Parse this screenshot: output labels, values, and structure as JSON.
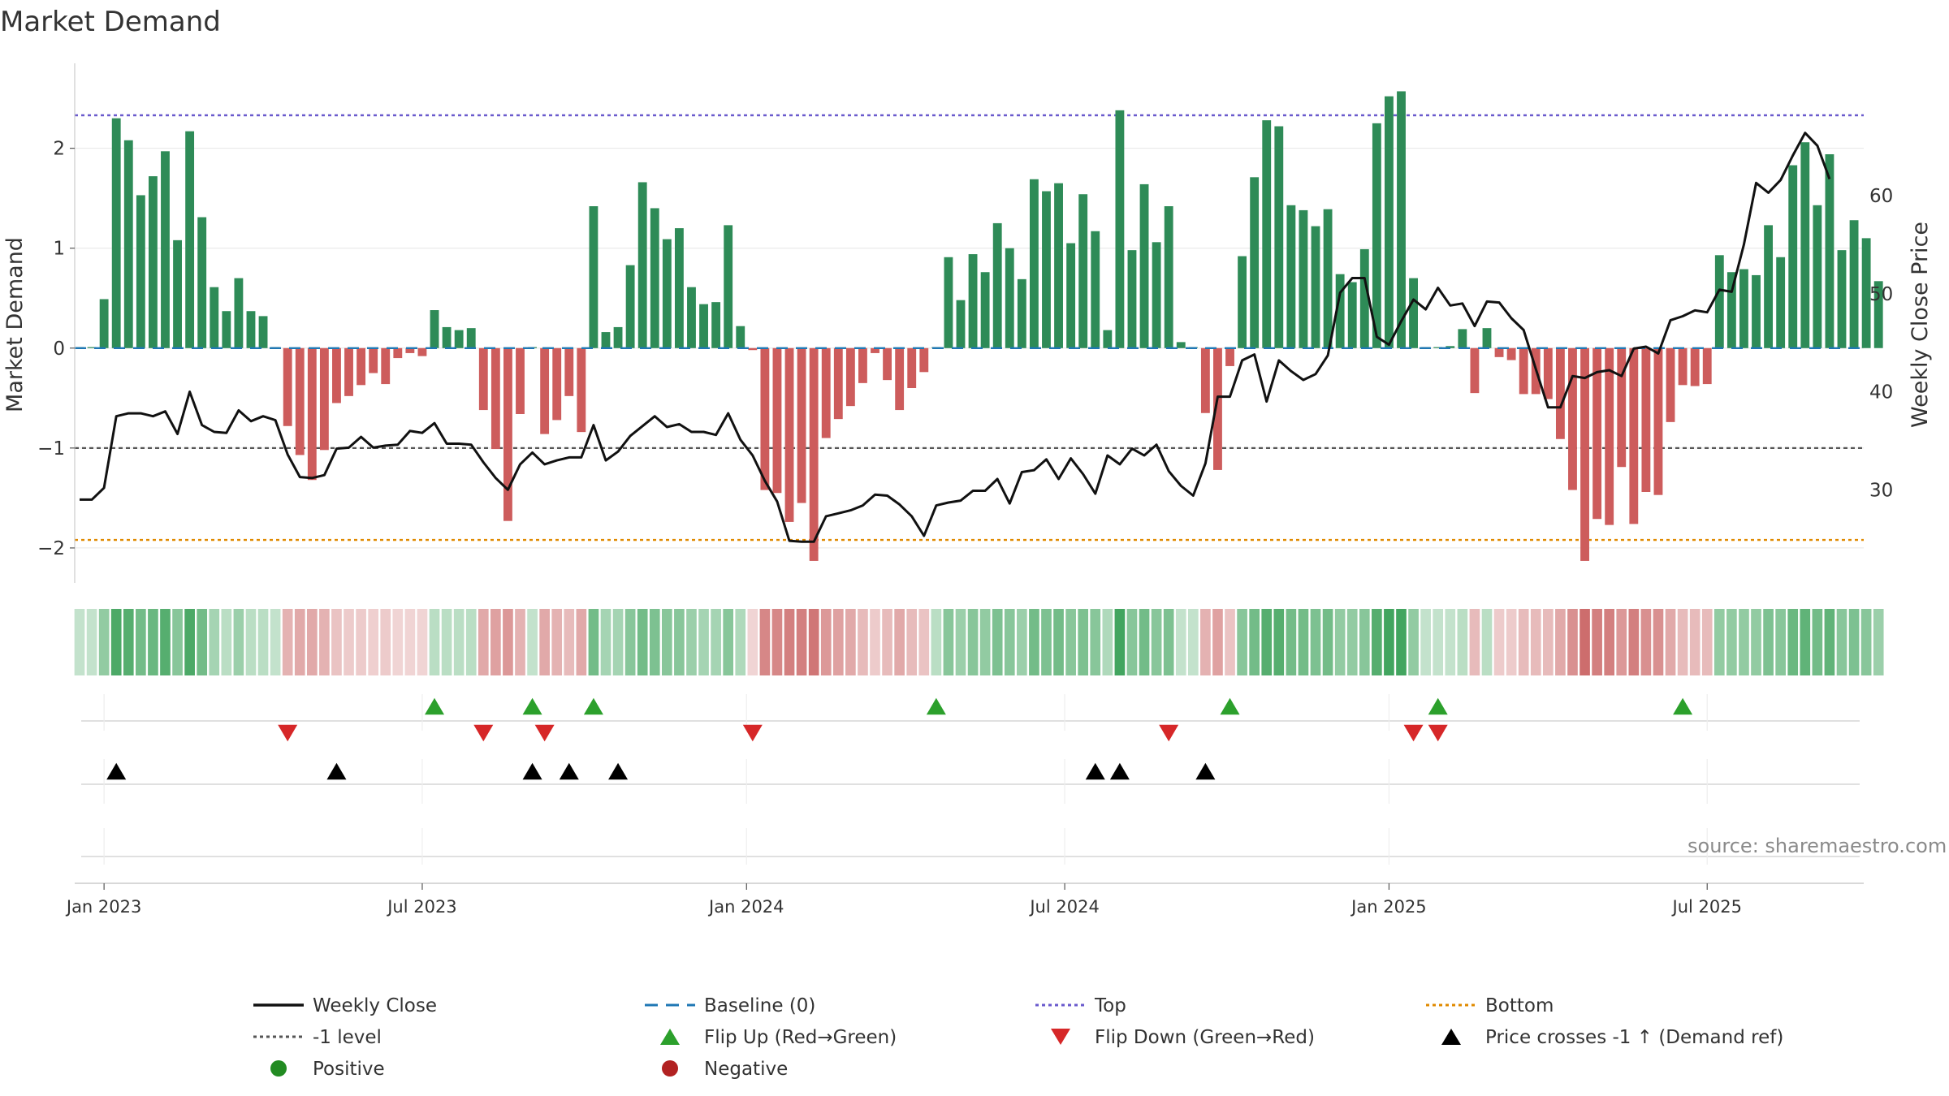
{
  "chart_data": {
    "type": "bar",
    "title": "Market Demand",
    "ylabel_left": "Market Demand",
    "ylabel_right": "Weekly Close Price",
    "ylim_left": [
      -2.35,
      2.85
    ],
    "ylim_right": [
      20.5,
      73.5
    ],
    "left_ticks": [
      -2,
      -1,
      0,
      1,
      2
    ],
    "left_tick_labels": [
      "−2",
      "−1",
      "0",
      "1",
      "2"
    ],
    "right_ticks": [
      30,
      40,
      50,
      60
    ],
    "right_tick_labels": [
      "30",
      "40",
      "50",
      "60"
    ],
    "date_ticks": [
      {
        "label": "Jan 2023",
        "week": 2
      },
      {
        "label": "Jul 2023",
        "week": 28
      },
      {
        "label": "Jan 2024",
        "week": 54.5
      },
      {
        "label": "Jul 2024",
        "week": 80.5
      },
      {
        "label": "Jan 2025",
        "week": 107
      },
      {
        "label": "Jul 2025",
        "week": 133
      }
    ],
    "weeks": 145,
    "reference_lines": {
      "top": 2.33,
      "bottom": -1.92,
      "minus_one": -1,
      "baseline": 0
    },
    "demand": [
      0.01,
      0.01,
      0.49,
      2.3,
      2.08,
      1.53,
      1.72,
      1.97,
      1.08,
      2.17,
      1.31,
      0.61,
      0.37,
      0.7,
      0.37,
      0.32,
      0.01,
      -0.78,
      -1.07,
      -1.32,
      -1.02,
      -0.55,
      -0.48,
      -0.37,
      -0.25,
      -0.36,
      -0.1,
      -0.05,
      -0.08,
      0.38,
      0.21,
      0.18,
      0.2,
      -0.62,
      -1.01,
      -1.73,
      -0.66,
      0.01,
      -0.86,
      -0.72,
      -0.48,
      -0.84,
      1.42,
      0.16,
      0.21,
      0.83,
      1.66,
      1.4,
      1.09,
      1.2,
      0.61,
      0.44,
      0.46,
      1.23,
      0.22,
      -0.02,
      -1.42,
      -1.45,
      -1.74,
      -1.55,
      -2.13,
      -0.9,
      -0.71,
      -0.58,
      -0.35,
      -0.05,
      -0.32,
      -0.62,
      -0.4,
      -0.24,
      0.01,
      0.91,
      0.48,
      0.94,
      0.76,
      1.25,
      1.0,
      0.69,
      1.69,
      1.57,
      1.65,
      1.05,
      1.54,
      1.17,
      0.18,
      2.38,
      0.98,
      1.64,
      1.06,
      1.42,
      0.06,
      0.01,
      -0.65,
      -1.22,
      -0.18,
      0.92,
      1.71,
      2.28,
      2.22,
      1.43,
      1.38,
      1.22,
      1.39,
      0.74,
      0.66,
      0.99,
      2.25,
      2.52,
      2.57,
      0.7,
      0.01,
      0.01,
      0.02,
      0.19,
      -0.45,
      0.2,
      -0.09,
      -0.12,
      -0.46,
      -0.46,
      -0.51,
      -0.91,
      -1.42,
      -2.13,
      -1.71,
      -1.77,
      -1.19,
      -1.76,
      -1.44,
      -1.47,
      -0.74,
      -0.37,
      -0.38,
      -0.36,
      0.93,
      0.76,
      0.79,
      0.73,
      1.23,
      0.91,
      1.83,
      2.06,
      1.43,
      1.94,
      0.98,
      1.28,
      1.1,
      0.67
    ],
    "close": [
      29.0,
      29.0,
      30.2,
      37.5,
      37.8,
      37.8,
      37.5,
      38.0,
      35.7,
      40.0,
      36.6,
      35.9,
      35.8,
      38.1,
      37.0,
      37.5,
      37.1,
      33.6,
      31.3,
      31.2,
      31.5,
      34.2,
      34.3,
      35.4,
      34.3,
      34.5,
      34.6,
      36.0,
      35.8,
      36.8,
      34.7,
      34.7,
      34.6,
      32.8,
      31.2,
      30.0,
      32.6,
      33.8,
      32.6,
      33.0,
      33.3,
      33.3,
      36.6,
      33.0,
      33.9,
      35.5,
      36.5,
      37.5,
      36.4,
      36.7,
      35.9,
      35.9,
      35.6,
      37.8,
      35.1,
      33.5,
      30.9,
      28.8,
      24.8,
      24.7,
      24.7,
      27.3,
      27.6,
      27.9,
      28.4,
      29.5,
      29.4,
      28.5,
      27.3,
      25.3,
      28.4,
      28.7,
      28.9,
      29.9,
      29.9,
      31.1,
      28.6,
      31.8,
      32.0,
      33.1,
      31.1,
      33.2,
      31.6,
      29.6,
      33.5,
      32.6,
      34.2,
      33.5,
      34.6,
      31.9,
      30.4,
      29.4,
      32.7,
      39.5,
      39.5,
      43.2,
      43.8,
      39.0,
      43.2,
      42.1,
      41.2,
      41.8,
      43.7,
      50.1,
      51.6,
      51.6,
      45.6,
      44.8,
      47.2,
      49.4,
      48.4,
      50.6,
      48.8,
      49.0,
      46.7,
      49.2,
      49.1,
      47.5,
      46.3,
      42.3,
      38.4,
      38.4,
      41.6,
      41.4,
      42.0,
      42.2,
      41.6,
      44.4,
      44.6,
      43.9,
      47.3,
      47.7,
      48.3,
      48.1,
      50.4,
      50.2,
      55.0,
      61.3,
      60.3,
      61.6,
      64.1,
      66.4,
      65.1,
      61.7
    ],
    "strip_intensity": [
      0.3,
      0.3,
      0.55,
      0.9,
      0.85,
      0.7,
      0.75,
      0.85,
      0.6,
      0.9,
      0.7,
      0.45,
      0.35,
      0.5,
      0.35,
      0.35,
      0.3,
      0.45,
      0.5,
      0.5,
      0.45,
      0.35,
      0.3,
      0.3,
      0.28,
      0.3,
      0.25,
      0.25,
      0.25,
      0.35,
      0.35,
      0.35,
      0.35,
      0.5,
      0.55,
      0.6,
      0.45,
      0.3,
      0.5,
      0.45,
      0.4,
      0.5,
      0.7,
      0.45,
      0.45,
      0.6,
      0.7,
      0.65,
      0.6,
      0.6,
      0.5,
      0.45,
      0.45,
      0.6,
      0.4,
      0.25,
      0.7,
      0.7,
      0.75,
      0.75,
      0.8,
      0.6,
      0.55,
      0.5,
      0.4,
      0.3,
      0.4,
      0.5,
      0.4,
      0.35,
      0.35,
      0.6,
      0.5,
      0.6,
      0.55,
      0.65,
      0.6,
      0.5,
      0.7,
      0.65,
      0.7,
      0.6,
      0.65,
      0.6,
      0.4,
      0.95,
      0.6,
      0.7,
      0.6,
      0.65,
      0.3,
      0.3,
      0.45,
      0.55,
      0.35,
      0.6,
      0.7,
      0.85,
      0.85,
      0.7,
      0.7,
      0.65,
      0.7,
      0.55,
      0.55,
      0.6,
      0.85,
      0.95,
      0.95,
      0.55,
      0.3,
      0.3,
      0.3,
      0.35,
      0.4,
      0.35,
      0.3,
      0.3,
      0.4,
      0.4,
      0.4,
      0.5,
      0.65,
      0.85,
      0.75,
      0.75,
      0.6,
      0.75,
      0.65,
      0.65,
      0.5,
      0.4,
      0.4,
      0.4,
      0.55,
      0.55,
      0.55,
      0.55,
      0.65,
      0.6,
      0.75,
      0.8,
      0.7,
      0.8,
      0.6,
      0.65,
      0.6,
      0.5
    ],
    "flip_up_weeks": [
      29,
      37,
      42,
      70,
      94,
      111,
      131
    ],
    "flip_down_weeks": [
      17,
      33,
      38,
      55,
      89,
      109,
      111
    ],
    "price_cross_weeks": [
      3,
      21,
      37,
      40,
      44,
      83,
      85,
      92
    ],
    "legend": [
      {
        "label": "Weekly Close",
        "symbol": "line",
        "color": "#111111"
      },
      {
        "label": "Baseline (0)",
        "symbol": "dash",
        "color": "#1f77b4"
      },
      {
        "label": "Top",
        "symbol": "dot",
        "color": "#6a5acd"
      },
      {
        "label": "Bottom",
        "symbol": "dot",
        "color": "#e08a00"
      },
      {
        "label": "-1 level",
        "symbol": "dot",
        "color": "#555555"
      },
      {
        "label": "Flip Up (Red→Green)",
        "symbol": "tri-up",
        "color": "#2ca02c"
      },
      {
        "label": "Flip Down (Green→Red)",
        "symbol": "tri-down",
        "color": "#d62728"
      },
      {
        "label": "Price crosses -1 ↑ (Demand ref)",
        "symbol": "tri-up",
        "color": "#000000"
      },
      {
        "label": "Positive",
        "symbol": "circle",
        "color": "#228b22"
      },
      {
        "label": "Negative",
        "symbol": "circle",
        "color": "#b22222"
      }
    ],
    "source": "source: sharemaestro.com",
    "colors": {
      "positive_bar": "#2e8b57",
      "negative_bar": "#cd5c5c",
      "close_line": "#111111",
      "baseline": "#1f77b4",
      "top": "#6a5acd",
      "bottom": "#e08a00",
      "minus_one": "#555555",
      "flip_up": "#2ca02c",
      "flip_down": "#d62728",
      "cross": "#000000",
      "grid": "#e6e6e6",
      "strip_pos_rgb": [
        56,
        160,
        86
      ],
      "strip_neg_rgb": [
        196,
        84,
        84
      ]
    }
  }
}
